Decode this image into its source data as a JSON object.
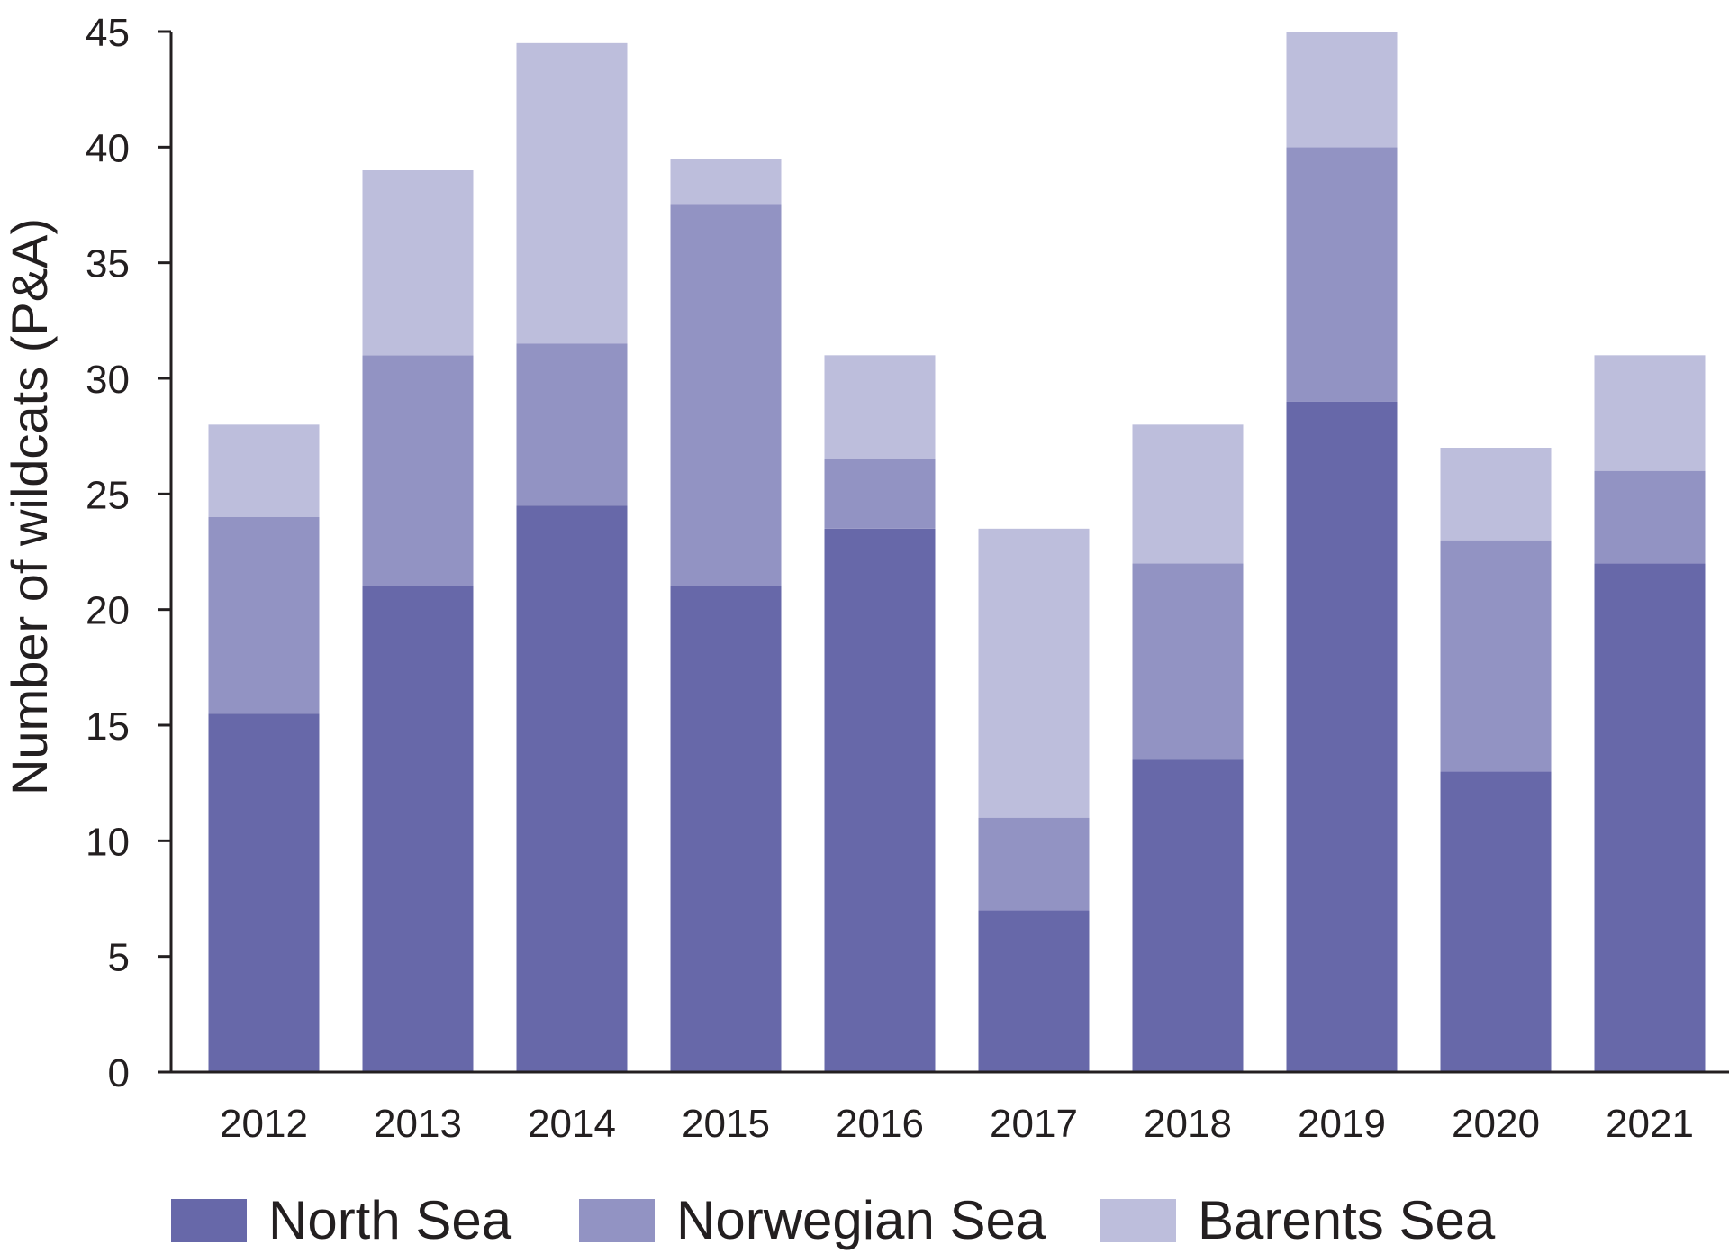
{
  "chart_data": {
    "type": "bar",
    "stacked": true,
    "categories": [
      "2012",
      "2013",
      "2014",
      "2015",
      "2016",
      "2017",
      "2018",
      "2019",
      "2020",
      "2021"
    ],
    "series": [
      {
        "name": "North Sea",
        "color": "#6768a9",
        "values": [
          15.5,
          21,
          24.5,
          21,
          23.5,
          7,
          13.5,
          29,
          13,
          22
        ]
      },
      {
        "name": "Norwegian Sea",
        "color": "#9293c3",
        "values": [
          8.5,
          10,
          7,
          16.5,
          3,
          4,
          8.5,
          11,
          10,
          4
        ]
      },
      {
        "name": "Barents Sea",
        "color": "#bdbedc",
        "values": [
          4,
          8,
          13,
          2,
          4.5,
          12.5,
          6,
          5,
          4,
          5
        ]
      }
    ],
    "ylabel": "Number of wildcats (P&A)",
    "xlabel": "",
    "ylim": [
      0,
      45
    ],
    "yticks": [
      0,
      5,
      10,
      15,
      20,
      25,
      30,
      35,
      40,
      45
    ],
    "grid": false,
    "legend_position": "bottom"
  }
}
